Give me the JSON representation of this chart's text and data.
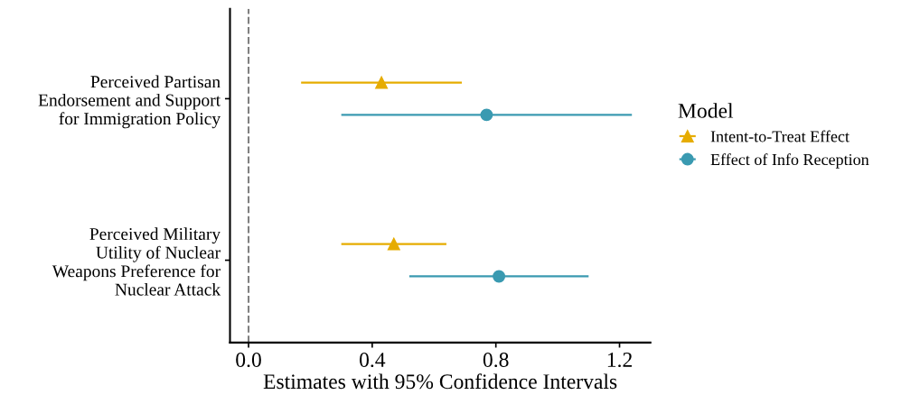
{
  "chart_data": {
    "type": "scatter",
    "orientation": "horizontal",
    "xlabel": "Estimates with 95% Confidence Intervals",
    "categories": [
      "Perceived Partisan\nEndorsement and Support\nfor Immigration Policy",
      "Perceived Military\nUtility of Nuclear\nWeapons Preference for\nNuclear Attack"
    ],
    "series": [
      {
        "name": "Intent-to-Treat Effect",
        "color": "#e6ac00",
        "marker": "triangle",
        "values": [
          0.43,
          0.47
        ],
        "errors": [
          [
            0.17,
            0.69
          ],
          [
            0.3,
            0.64
          ]
        ]
      },
      {
        "name": "Effect of Info Reception",
        "color": "#3a9ab1",
        "marker": "circle",
        "values": [
          0.77,
          0.81
        ],
        "errors": [
          [
            0.3,
            1.24
          ],
          [
            0.52,
            1.1
          ]
        ]
      }
    ],
    "xlim": [
      -0.06,
      1.3
    ],
    "xticks": [
      {
        "value": 0,
        "label": "0.0"
      },
      0.4,
      0.8,
      1.2
    ],
    "ref_lines": [
      {
        "axis": "x",
        "value": 0,
        "color": "#808080",
        "line_style": "dashed"
      }
    ],
    "legend": "right",
    "legend_title": "Model",
    "grid": false
  }
}
